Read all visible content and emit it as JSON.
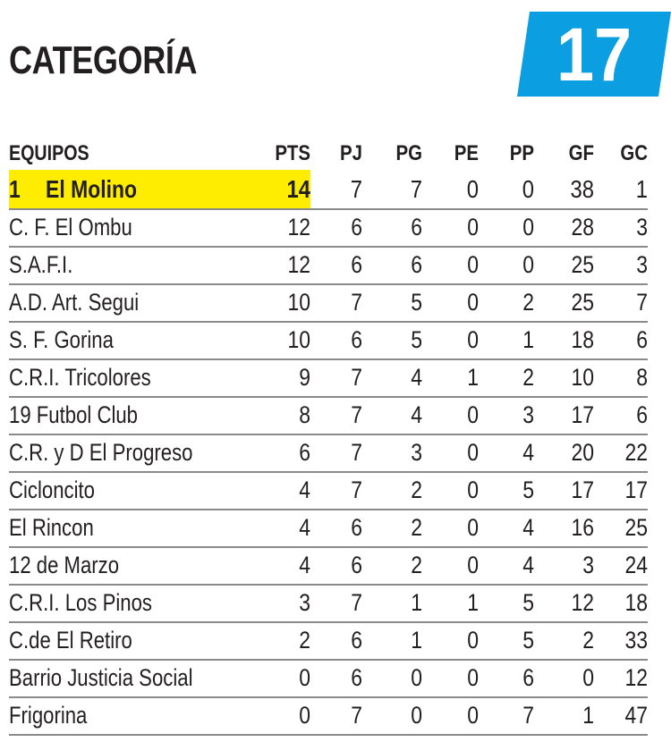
{
  "header": {
    "title": "CATEGORÍA",
    "category_number": "17",
    "badge_color": "#0b9ee0",
    "highlight_color": "#ffed00"
  },
  "table": {
    "columns": [
      "EQUIPOS",
      "PTS",
      "PJ",
      "PG",
      "PE",
      "PP",
      "GF",
      "GC"
    ],
    "leader_position": "1",
    "rows": [
      {
        "team": "El Molino",
        "pts": "14",
        "pj": "7",
        "pg": "7",
        "pe": "0",
        "pp": "0",
        "gf": "38",
        "gc": "1"
      },
      {
        "team": "C. F. El Ombu",
        "pts": "12",
        "pj": "6",
        "pg": "6",
        "pe": "0",
        "pp": "0",
        "gf": "28",
        "gc": "3"
      },
      {
        "team": "S.A.F.I.",
        "pts": "12",
        "pj": "6",
        "pg": "6",
        "pe": "0",
        "pp": "0",
        "gf": "25",
        "gc": "3"
      },
      {
        "team": "A.D. Art. Segui",
        "pts": "10",
        "pj": "7",
        "pg": "5",
        "pe": "0",
        "pp": "2",
        "gf": "25",
        "gc": "7"
      },
      {
        "team": "S. F. Gorina",
        "pts": "10",
        "pj": "6",
        "pg": "5",
        "pe": "0",
        "pp": "1",
        "gf": "18",
        "gc": "6"
      },
      {
        "team": "C.R.I. Tricolores",
        "pts": "9",
        "pj": "7",
        "pg": "4",
        "pe": "1",
        "pp": "2",
        "gf": "10",
        "gc": "8"
      },
      {
        "team": "19 Futbol Club",
        "pts": "8",
        "pj": "7",
        "pg": "4",
        "pe": "0",
        "pp": "3",
        "gf": "17",
        "gc": "6"
      },
      {
        "team": "C.R. y D El Progreso",
        "pts": "6",
        "pj": "7",
        "pg": "3",
        "pe": "0",
        "pp": "4",
        "gf": "20",
        "gc": "22"
      },
      {
        "team": "Cicloncito",
        "pts": "4",
        "pj": "7",
        "pg": "2",
        "pe": "0",
        "pp": "5",
        "gf": "17",
        "gc": "17"
      },
      {
        "team": "El Rincon",
        "pts": "4",
        "pj": "6",
        "pg": "2",
        "pe": "0",
        "pp": "4",
        "gf": "16",
        "gc": "25"
      },
      {
        "team": "12 de Marzo",
        "pts": "4",
        "pj": "6",
        "pg": "2",
        "pe": "0",
        "pp": "4",
        "gf": "3",
        "gc": "24"
      },
      {
        "team": "C.R.I. Los Pinos",
        "pts": "3",
        "pj": "7",
        "pg": "1",
        "pe": "1",
        "pp": "5",
        "gf": "12",
        "gc": "18"
      },
      {
        "team": "C.de El Retiro",
        "pts": "2",
        "pj": "6",
        "pg": "1",
        "pe": "0",
        "pp": "5",
        "gf": "2",
        "gc": "33"
      },
      {
        "team": "Barrio Justicia Social",
        "pts": "0",
        "pj": "6",
        "pg": "0",
        "pe": "0",
        "pp": "6",
        "gf": "0",
        "gc": "12"
      },
      {
        "team": "Frigorina",
        "pts": "0",
        "pj": "7",
        "pg": "0",
        "pe": "0",
        "pp": "7",
        "gf": "1",
        "gc": "47"
      }
    ]
  }
}
